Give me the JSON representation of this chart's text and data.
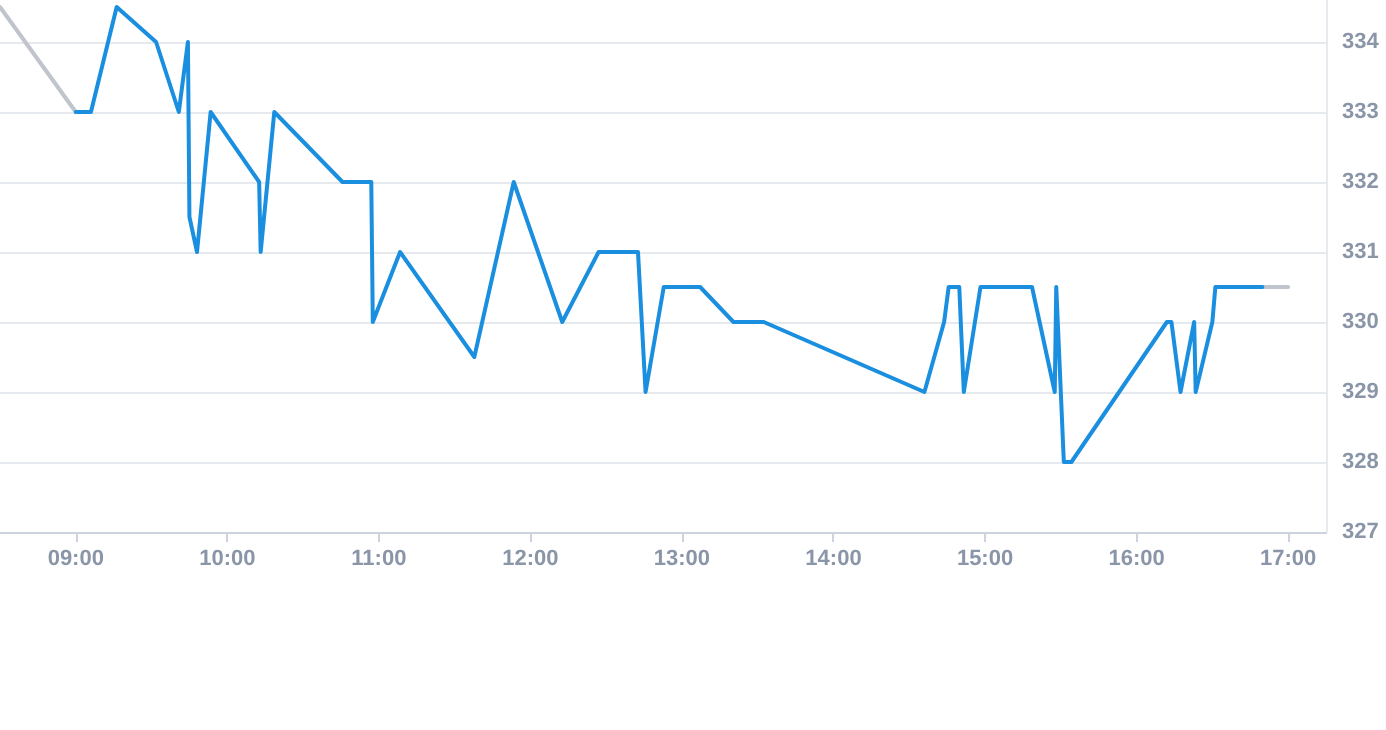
{
  "chart_data": {
    "type": "line",
    "xlim": [
      8.5,
      17.25
    ],
    "xticks": [
      {
        "value": 9,
        "label": "09:00"
      },
      {
        "value": 10,
        "label": "10:00"
      },
      {
        "value": 11,
        "label": "11:00"
      },
      {
        "value": 12,
        "label": "12:00"
      },
      {
        "value": 13,
        "label": "13:00"
      },
      {
        "value": 14,
        "label": "14:00"
      },
      {
        "value": 15,
        "label": "15:00"
      },
      {
        "value": 16,
        "label": "16:00"
      },
      {
        "value": 17,
        "label": "17:00"
      }
    ],
    "ylim": [
      327,
      334.6
    ],
    "yticks": [
      327,
      328,
      329,
      330,
      331,
      332,
      333,
      334
    ],
    "grid": "y",
    "marker": "none",
    "line_style": "solid",
    "series": [
      {
        "color": "#c0c4cc",
        "x": [
          8.5,
          9.0,
          12.0,
          16.83,
          17.0
        ],
        "values": [
          334.5,
          333,
          null,
          330.5,
          330.5
        ]
      },
      {
        "color": "#1a8fe0",
        "x": [
          9.0,
          9.1,
          9.27,
          9.53,
          9.68,
          9.74,
          9.75,
          9.8,
          9.89,
          10.21,
          10.22,
          10.31,
          10.76,
          10.95,
          10.96,
          11.14,
          11.63,
          11.89,
          12.21,
          12.45,
          12.71,
          12.76,
          12.88,
          13.12,
          13.34,
          13.54,
          14.6,
          14.73,
          14.76,
          14.83,
          14.86,
          14.97,
          15.31,
          15.46,
          15.47,
          15.52,
          15.57,
          16.2,
          16.23,
          16.29,
          16.38,
          16.39,
          16.5,
          16.52,
          16.83
        ],
        "values": [
          333,
          333,
          334.5,
          334,
          333,
          334,
          331.5,
          331,
          333,
          332,
          331,
          333,
          332,
          332,
          330,
          331,
          329.5,
          332,
          330,
          331,
          331,
          329,
          330.5,
          330.5,
          330,
          330,
          329,
          330,
          330.5,
          330.5,
          329,
          330.5,
          330.5,
          329,
          330.5,
          328,
          328,
          330,
          330,
          329,
          330,
          329,
          330,
          330.5,
          330.5
        ]
      }
    ]
  }
}
